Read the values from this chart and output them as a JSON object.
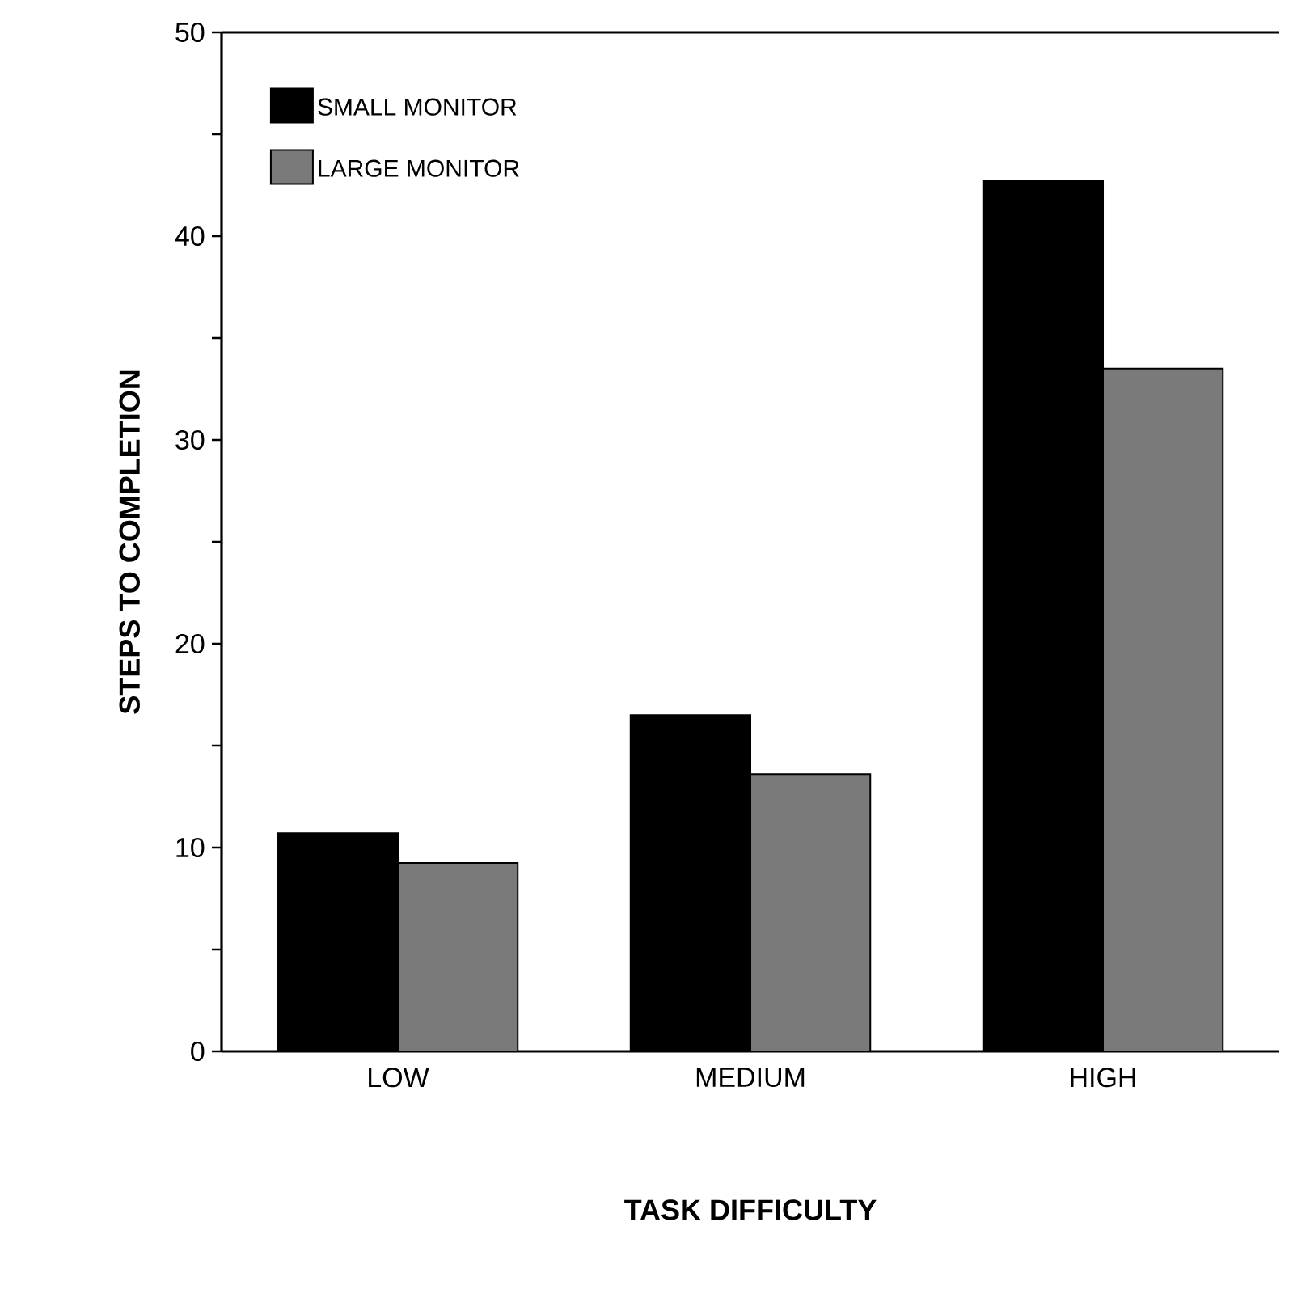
{
  "chart_data": {
    "type": "bar",
    "xlabel": "TASK  DIFFICULTY",
    "ylabel": "STEPS TO COMPLETION",
    "categories": [
      "LOW",
      "MEDIUM",
      "HIGH"
    ],
    "series": [
      {
        "name": "SMALL MONITOR",
        "color": "#000000",
        "values": [
          10.7,
          16.5,
          42.7
        ]
      },
      {
        "name": "LARGE MONITOR",
        "color": "#7a7a7a",
        "values": [
          9.25,
          13.6,
          33.5
        ]
      }
    ],
    "ylim": [
      0,
      50
    ],
    "yticks": [
      0,
      {
        "value": 5,
        "label": null
      },
      10,
      {
        "value": 15,
        "label": null
      },
      20,
      {
        "value": 25,
        "label": null
      },
      30,
      {
        "value": 35,
        "label": null
      },
      40,
      {
        "value": 45,
        "label": null
      },
      50
    ],
    "grid": false,
    "legend": "top left"
  }
}
